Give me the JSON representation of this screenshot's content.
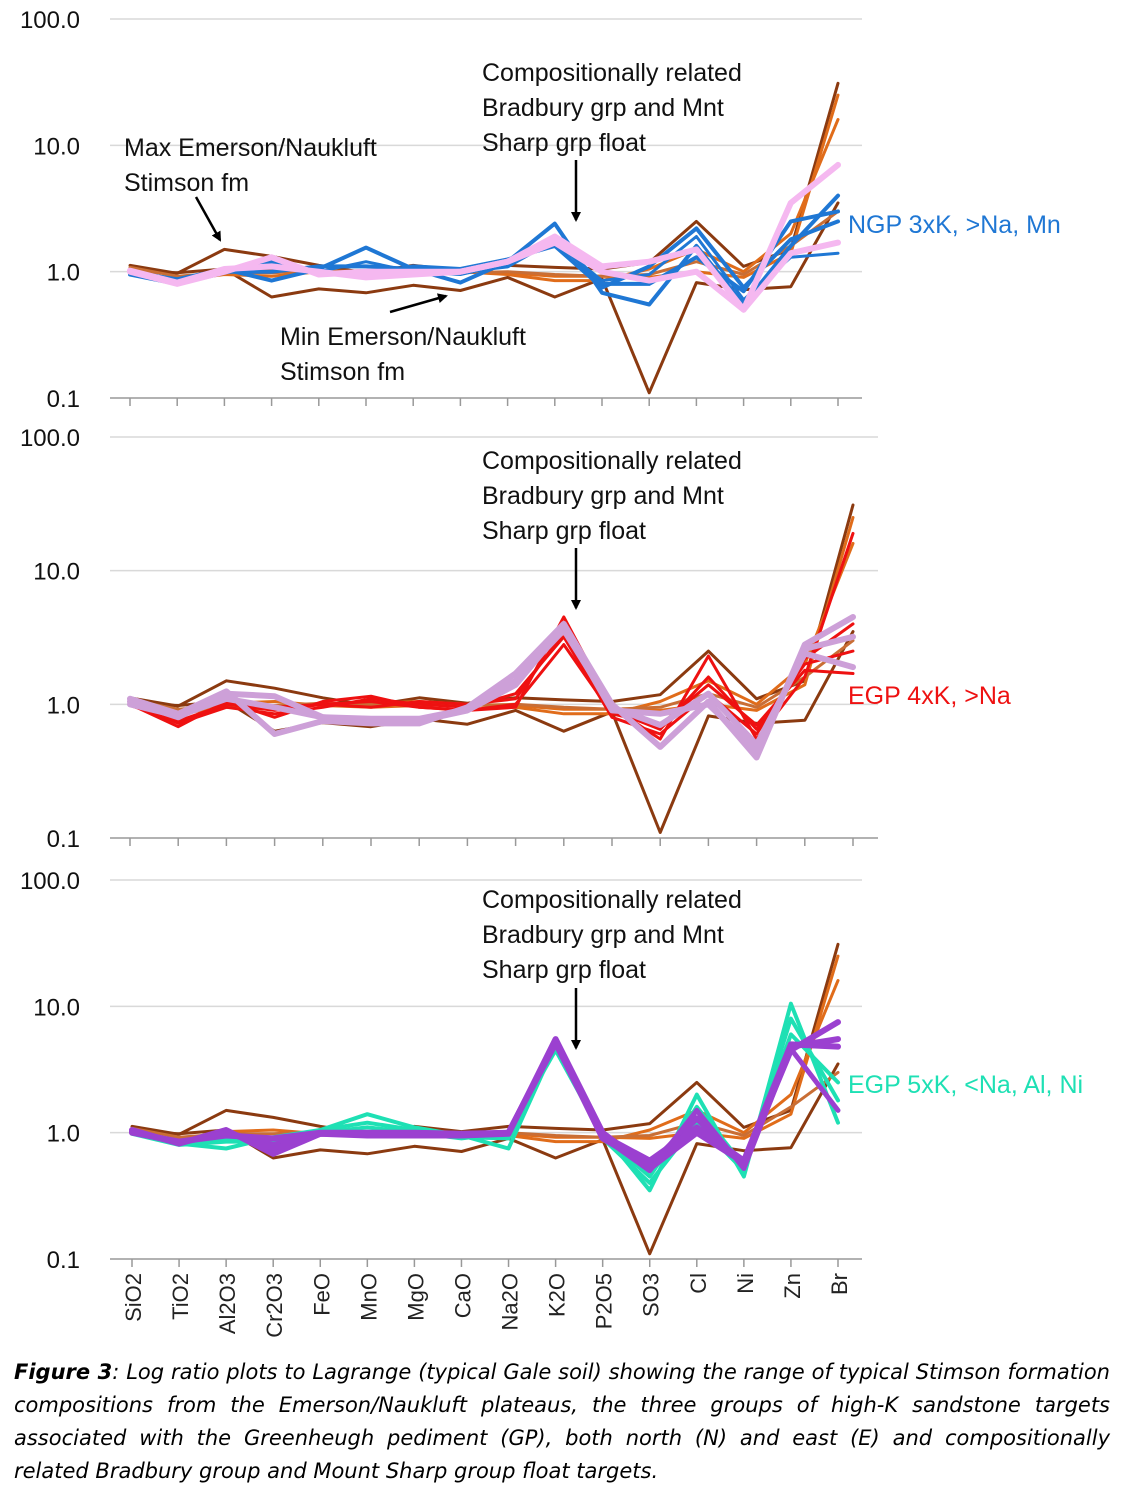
{
  "chart_data": [
    {
      "type": "line",
      "yscale": "log",
      "ylim": [
        0.1,
        100
      ],
      "ytick_labels": [
        "100.0",
        "10.0",
        "1.0",
        "0.1"
      ],
      "categories": [
        "SiO2",
        "TiO2",
        "Al2O3",
        "Cr2O3",
        "FeO",
        "MnO",
        "MgO",
        "CaO",
        "Na2O",
        "K2O",
        "P2O5",
        "SO3",
        "Cl",
        "Ni",
        "Zn",
        "Br"
      ],
      "show_category_labels": false,
      "annotations": [
        {
          "id": "max",
          "text": [
            "Max Emerson/Naukluft",
            "Stimson fm"
          ]
        },
        {
          "id": "min",
          "text": [
            "Min Emerson/Naukluft",
            "Stimson fm"
          ]
        },
        {
          "id": "rel",
          "text": [
            "Compositionally related",
            "Bradbury grp and Mnt",
            "Sharp grp float"
          ]
        },
        {
          "id": "group",
          "text": [
            "NGP 3xK, >Na, Mn"
          ],
          "color": "#1f77d4"
        }
      ],
      "series": [
        {
          "color": "#8b3a10",
          "width": 3,
          "values": [
            1.12,
            0.97,
            1.5,
            1.32,
            1.12,
            0.98,
            1.12,
            1.02,
            1.12,
            1.08,
            1.05,
            1.18,
            2.5,
            1.1,
            1.5,
            31
          ]
        },
        {
          "color": "#8b3a10",
          "width": 3,
          "values": [
            1.0,
            0.98,
            1.05,
            0.63,
            0.73,
            0.68,
            0.78,
            0.71,
            0.9,
            0.63,
            0.88,
            0.11,
            0.82,
            0.72,
            0.76,
            3.5
          ]
        },
        {
          "color": "#e06c1a",
          "width": 3,
          "values": [
            1.05,
            0.85,
            0.95,
            0.92,
            1.0,
            1.02,
            1.05,
            1.0,
            0.98,
            0.92,
            0.92,
            0.9,
            1.0,
            0.9,
            1.4,
            25
          ]
        },
        {
          "color": "#e06c1a",
          "width": 3,
          "values": [
            1.0,
            0.88,
            1.02,
            1.05,
            0.98,
            0.95,
            0.98,
            1.0,
            0.95,
            0.85,
            0.85,
            1.05,
            1.5,
            1.0,
            2.0,
            16
          ]
        },
        {
          "color": "#c96e35",
          "width": 3,
          "values": [
            1.08,
            0.92,
            0.98,
            0.98,
            1.02,
            1.0,
            1.0,
            0.98,
            1.0,
            0.95,
            0.92,
            0.95,
            1.2,
            0.95,
            1.6,
            3
          ]
        },
        {
          "color": "#1f77d4",
          "width": 4,
          "values": [
            1.0,
            0.82,
            1.05,
            0.85,
            1.05,
            1.55,
            1.05,
            0.82,
            1.2,
            2.4,
            0.68,
            0.55,
            1.6,
            0.55,
            1.6,
            4.0
          ]
        },
        {
          "color": "#1f77d4",
          "width": 4,
          "values": [
            0.95,
            0.8,
            0.98,
            1.2,
            0.95,
            0.95,
            1.1,
            1.05,
            1.25,
            1.6,
            0.75,
            1.1,
            2.2,
            0.75,
            1.8,
            2.5
          ]
        },
        {
          "color": "#1f77d4",
          "width": 4,
          "values": [
            1.02,
            0.85,
            1.0,
            1.0,
            1.1,
            1.1,
            1.05,
            1.0,
            1.1,
            1.8,
            0.8,
            0.8,
            1.3,
            0.7,
            2.5,
            3.0
          ]
        },
        {
          "color": "#1f77d4",
          "width": 3,
          "values": [
            1.0,
            0.88,
            1.05,
            1.1,
            1.0,
            1.2,
            1.0,
            0.95,
            1.15,
            1.7,
            0.85,
            0.95,
            1.9,
            0.6,
            1.3,
            1.4
          ]
        },
        {
          "color": "#f5b8f0",
          "width": 6,
          "values": [
            1.0,
            0.8,
            1.0,
            1.3,
            0.95,
            1.0,
            1.0,
            1.0,
            1.2,
            1.9,
            1.1,
            1.2,
            1.5,
            0.5,
            3.5,
            7.0
          ]
        },
        {
          "color": "#f5b8f0",
          "width": 6,
          "values": [
            1.02,
            0.82,
            1.05,
            1.1,
            1.0,
            0.9,
            0.95,
            1.0,
            1.2,
            1.7,
            1.0,
            0.85,
            1.0,
            0.5,
            1.4,
            1.7
          ]
        }
      ]
    },
    {
      "type": "line",
      "yscale": "log",
      "ylim": [
        0.1,
        100
      ],
      "ytick_labels": [
        "100.0",
        "10.0",
        "1.0",
        "0.1"
      ],
      "categories": [
        "SiO2",
        "TiO2",
        "Al2O3",
        "Cr2O3",
        "FeO",
        "MnO",
        "MgO",
        "CaO",
        "Na2O",
        "K2O",
        "P2O5",
        "SO3",
        "Cl",
        "Ni",
        "Zn",
        "Br"
      ],
      "show_category_labels": false,
      "annotations": [
        {
          "id": "rel",
          "text": [
            "Compositionally related",
            "Bradbury grp and Mnt",
            "Sharp grp float"
          ]
        },
        {
          "id": "group",
          "text": [
            "EGP 4xK, >Na"
          ],
          "color": "#ee1111"
        }
      ],
      "series": [
        {
          "color": "#8b3a10",
          "width": 3,
          "values": [
            1.12,
            0.97,
            1.5,
            1.32,
            1.12,
            0.98,
            1.12,
            1.02,
            1.12,
            1.08,
            1.05,
            1.18,
            2.5,
            1.1,
            1.5,
            31
          ]
        },
        {
          "color": "#8b3a10",
          "width": 3,
          "values": [
            1.0,
            0.98,
            1.05,
            0.63,
            0.73,
            0.68,
            0.78,
            0.71,
            0.9,
            0.63,
            0.88,
            0.11,
            0.82,
            0.72,
            0.76,
            3.5
          ]
        },
        {
          "color": "#e06c1a",
          "width": 3,
          "values": [
            1.05,
            0.85,
            0.95,
            0.92,
            1.0,
            1.02,
            1.05,
            1.0,
            0.98,
            0.92,
            0.92,
            0.9,
            1.0,
            0.9,
            1.4,
            25
          ]
        },
        {
          "color": "#e06c1a",
          "width": 3,
          "values": [
            1.0,
            0.88,
            1.02,
            1.05,
            0.98,
            0.95,
            0.98,
            1.0,
            0.95,
            0.85,
            0.85,
            1.05,
            1.5,
            1.0,
            2.0,
            16
          ]
        },
        {
          "color": "#c96e35",
          "width": 3,
          "values": [
            1.08,
            0.92,
            0.98,
            0.98,
            1.02,
            1.0,
            1.0,
            0.98,
            1.0,
            0.95,
            0.92,
            0.95,
            1.2,
            0.95,
            1.6,
            3
          ]
        },
        {
          "color": "#ee1111",
          "width": 3,
          "values": [
            1.0,
            0.68,
            1.05,
            0.8,
            1.05,
            1.15,
            0.95,
            0.9,
            0.95,
            4.5,
            0.95,
            0.55,
            2.3,
            0.55,
            1.6,
            19
          ]
        },
        {
          "color": "#ee1111",
          "width": 3,
          "values": [
            1.02,
            0.72,
            0.95,
            0.85,
            0.95,
            1.1,
            1.0,
            0.95,
            1.2,
            3.2,
            0.8,
            0.6,
            1.2,
            0.6,
            2.2,
            4.0
          ]
        },
        {
          "color": "#ee1111",
          "width": 3,
          "values": [
            0.98,
            0.75,
            1.0,
            0.9,
            1.0,
            1.05,
            0.95,
            0.9,
            1.0,
            2.8,
            0.85,
            0.7,
            1.4,
            0.7,
            1.8,
            1.7
          ]
        },
        {
          "color": "#ee1111",
          "width": 3,
          "values": [
            1.0,
            0.8,
            1.1,
            0.95,
            1.0,
            0.95,
            1.05,
            1.0,
            1.1,
            3.5,
            0.9,
            0.65,
            1.6,
            0.65,
            2.0,
            2.5
          ]
        },
        {
          "color": "#cda0d8",
          "width": 6,
          "values": [
            1.1,
            0.85,
            1.25,
            0.6,
            0.75,
            0.72,
            0.72,
            0.95,
            1.7,
            4.0,
            1.0,
            0.48,
            1.05,
            0.4,
            2.8,
            4.5
          ]
        },
        {
          "color": "#cda0d8",
          "width": 6,
          "values": [
            1.05,
            0.8,
            1.2,
            1.15,
            0.8,
            0.75,
            0.75,
            0.9,
            1.4,
            3.8,
            0.9,
            0.85,
            1.0,
            0.45,
            2.6,
            3.2
          ]
        },
        {
          "color": "#cda0d8",
          "width": 6,
          "values": [
            1.0,
            0.82,
            1.1,
            0.95,
            0.8,
            0.78,
            0.78,
            0.92,
            1.5,
            3.6,
            0.95,
            0.7,
            1.2,
            0.5,
            2.4,
            1.9
          ]
        }
      ]
    },
    {
      "type": "line",
      "yscale": "log",
      "ylim": [
        0.1,
        100
      ],
      "ytick_labels": [
        "100.0",
        "10.0",
        "1.0",
        "0.1"
      ],
      "categories": [
        "SiO2",
        "TiO2",
        "Al2O3",
        "Cr2O3",
        "FeO",
        "MnO",
        "MgO",
        "CaO",
        "Na2O",
        "K2O",
        "P2O5",
        "SO3",
        "Cl",
        "Ni",
        "Zn",
        "Br"
      ],
      "show_category_labels": true,
      "annotations": [
        {
          "id": "rel",
          "text": [
            "Compositionally related",
            "Bradbury grp and Mnt",
            "Sharp grp float"
          ]
        },
        {
          "id": "group",
          "text": [
            "EGP 5xK, <Na, Al, Ni"
          ],
          "color": "#1ee0b4"
        }
      ],
      "series": [
        {
          "color": "#8b3a10",
          "width": 3,
          "values": [
            1.12,
            0.97,
            1.5,
            1.32,
            1.12,
            0.98,
            1.12,
            1.02,
            1.12,
            1.08,
            1.05,
            1.18,
            2.5,
            1.1,
            1.5,
            31
          ]
        },
        {
          "color": "#8b3a10",
          "width": 3,
          "values": [
            1.0,
            0.98,
            1.05,
            0.63,
            0.73,
            0.68,
            0.78,
            0.71,
            0.9,
            0.63,
            0.88,
            0.11,
            0.82,
            0.72,
            0.76,
            3.5
          ]
        },
        {
          "color": "#e06c1a",
          "width": 3,
          "values": [
            1.05,
            0.85,
            0.95,
            0.92,
            1.0,
            1.02,
            1.05,
            1.0,
            0.98,
            0.92,
            0.92,
            0.9,
            1.0,
            0.9,
            1.4,
            25
          ]
        },
        {
          "color": "#e06c1a",
          "width": 3,
          "values": [
            1.0,
            0.88,
            1.02,
            1.05,
            0.98,
            0.95,
            0.98,
            1.0,
            0.95,
            0.85,
            0.85,
            1.05,
            1.5,
            1.0,
            2.0,
            16
          ]
        },
        {
          "color": "#c96e35",
          "width": 3,
          "values": [
            1.08,
            0.92,
            0.98,
            0.98,
            1.02,
            1.0,
            1.0,
            0.98,
            1.0,
            0.95,
            0.92,
            0.95,
            1.2,
            0.95,
            1.6,
            3
          ]
        },
        {
          "color": "#1ee0b4",
          "width": 4,
          "values": [
            1.0,
            0.82,
            0.75,
            0.92,
            1.05,
            1.4,
            1.1,
            0.95,
            0.75,
            5.0,
            1.0,
            0.35,
            2.0,
            0.45,
            10.5,
            1.2
          ]
        },
        {
          "color": "#1ee0b4",
          "width": 4,
          "values": [
            1.02,
            0.85,
            0.9,
            0.8,
            1.0,
            1.1,
            1.0,
            0.9,
            1.0,
            4.5,
            0.95,
            0.45,
            1.6,
            0.55,
            6.0,
            2.5
          ]
        },
        {
          "color": "#1ee0b4",
          "width": 4,
          "values": [
            0.98,
            0.8,
            0.85,
            0.85,
            1.05,
            1.2,
            1.05,
            0.92,
            0.9,
            4.8,
            0.9,
            0.4,
            1.2,
            0.5,
            8.0,
            1.8
          ]
        },
        {
          "color": "#9b40d0",
          "width": 6,
          "values": [
            1.05,
            0.82,
            1.05,
            0.68,
            0.98,
            0.95,
            0.95,
            0.95,
            0.98,
            5.5,
            1.0,
            0.52,
            1.0,
            0.58,
            4.5,
            7.5
          ]
        },
        {
          "color": "#9b40d0",
          "width": 6,
          "values": [
            1.0,
            0.85,
            0.95,
            0.9,
            1.0,
            1.0,
            1.0,
            0.98,
            1.0,
            5.2,
            0.9,
            0.55,
            1.3,
            0.55,
            4.8,
            5.5
          ]
        },
        {
          "color": "#9b40d0",
          "width": 6,
          "values": [
            1.02,
            0.83,
            1.0,
            0.8,
            0.98,
            0.98,
            0.98,
            0.96,
            1.0,
            5.3,
            0.95,
            0.6,
            1.1,
            0.6,
            5.0,
            4.8
          ]
        },
        {
          "color": "#9b40d0",
          "width": 5,
          "values": [
            1.0,
            0.84,
            1.0,
            0.75,
            1.0,
            0.97,
            0.97,
            0.95,
            0.99,
            5.0,
            0.92,
            0.5,
            1.5,
            0.52,
            4.6,
            1.5
          ]
        }
      ]
    }
  ],
  "caption": {
    "label": "Figure 3",
    "text": ": Log ratio plots to Lagrange (typical Gale soil) showing the range of typical Stimson formation compositions from the Emerson/Naukluft plateaus, the three groups of high-K sandstone targets associated with the Greenheugh pediment (GP), both north (N) and east (E) and compositionally related Bradbury group and Mount Sharp group float targets."
  }
}
